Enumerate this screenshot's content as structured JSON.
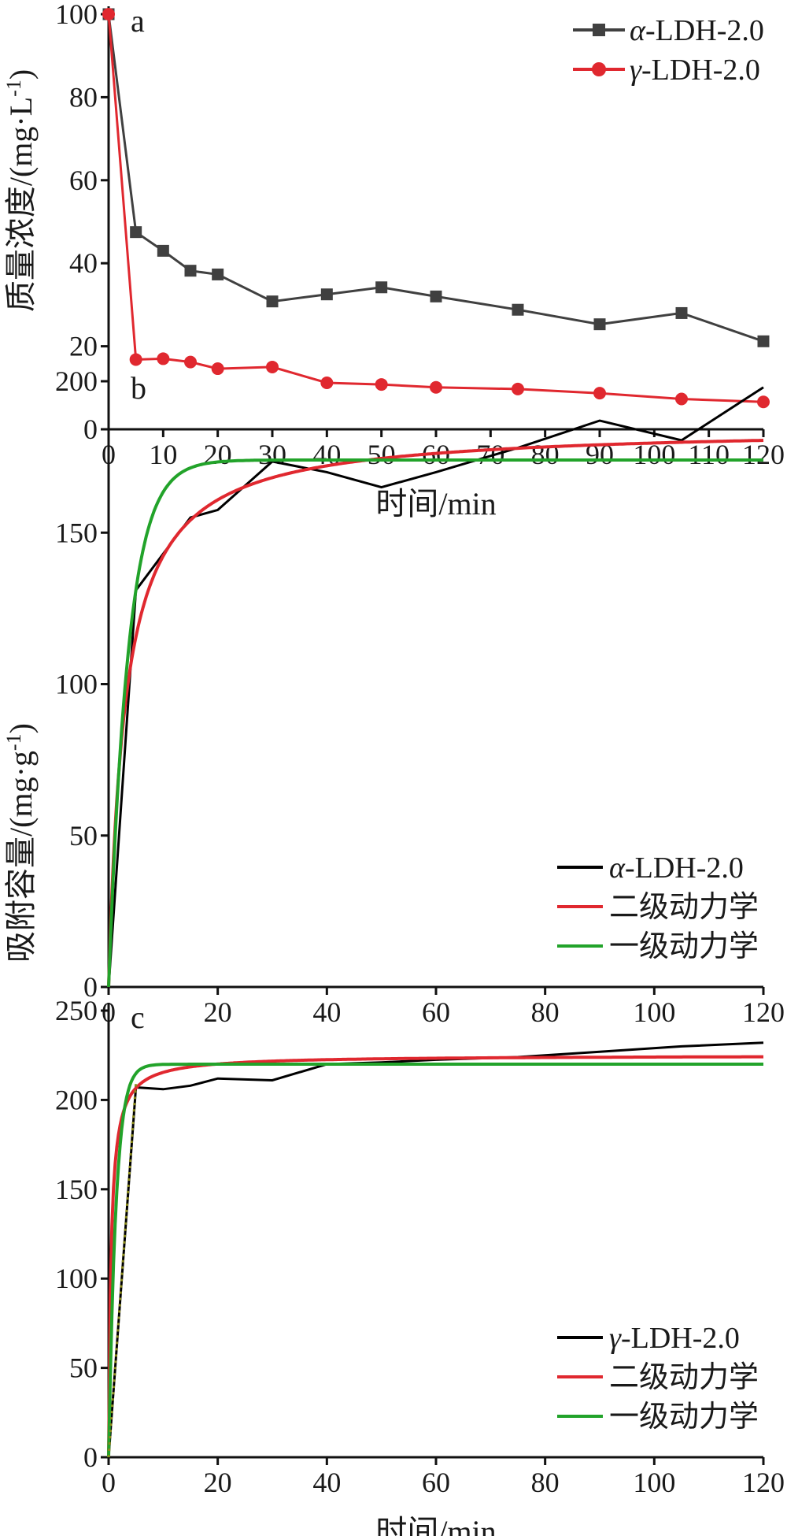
{
  "chart_data": [
    {
      "panel": "a",
      "type": "line",
      "xlabel": "时间/min",
      "ylabel": "质量浓度/(mg·L-1)",
      "ylabel_main": "质量浓度/(mg·L",
      "ylabel_sup": "-1",
      "ylabel_end": ")",
      "xlim": [
        0,
        120
      ],
      "ylim": [
        0,
        100
      ],
      "x_ticks": [
        0,
        10,
        20,
        30,
        40,
        50,
        60,
        70,
        80,
        90,
        100,
        110,
        120
      ],
      "y_ticks": [
        0,
        20,
        40,
        60,
        80,
        100
      ],
      "legend_position": "top-right",
      "series": [
        {
          "name": "α-LDH-2.0",
          "name_symbol": "α",
          "name_rest": "-LDH-2.0",
          "color": "#404040",
          "marker": "square",
          "x": [
            0,
            5,
            10,
            15,
            20,
            30,
            40,
            50,
            60,
            75,
            90,
            105,
            120
          ],
          "y": [
            100,
            47.5,
            43,
            38.2,
            37.3,
            30.8,
            32.5,
            34.2,
            32,
            28.8,
            25.3,
            28,
            21.2
          ]
        },
        {
          "name": "γ-LDH-2.0",
          "name_symbol": "γ",
          "name_rest": "-LDH-2.0",
          "color": "#e0282f",
          "marker": "circle",
          "x": [
            0,
            5,
            10,
            15,
            20,
            30,
            40,
            50,
            60,
            75,
            90,
            105,
            120
          ],
          "y": [
            100,
            16.8,
            17,
            16.2,
            14.6,
            15,
            11.2,
            10.8,
            10.1,
            9.7,
            8.7,
            7.3,
            6.6
          ]
        }
      ]
    },
    {
      "panel": "b",
      "type": "line",
      "xlabel": "",
      "ylabel": "吸附容量/(mg·g-1)",
      "ylabel_main": "吸附容量/(mg·g",
      "ylabel_sup": "-1",
      "ylabel_end": ")",
      "xlim": [
        0,
        120
      ],
      "ylim": [
        0,
        200
      ],
      "x_ticks": [
        0,
        20,
        40,
        60,
        80,
        100,
        120
      ],
      "y_ticks": [
        0,
        50,
        100,
        150,
        200
      ],
      "legend_position": "bottom-right",
      "series": [
        {
          "name": "α-LDH-2.0",
          "name_symbol": "α",
          "name_rest": "-LDH-2.0",
          "color": "#000000",
          "x": [
            0,
            5,
            10,
            15,
            20,
            30,
            40,
            50,
            60,
            75,
            90,
            105,
            120
          ],
          "y": [
            0,
            131,
            143,
            155,
            157.5,
            173.5,
            170,
            165,
            170,
            178,
            187,
            180.5,
            198
          ]
        },
        {
          "name": "二级动力学",
          "color": "#e0282f",
          "fit": "pso",
          "qe": 185,
          "k": 0.0018
        },
        {
          "name": "一级动力学",
          "color": "#22a32a",
          "fit": "pfo",
          "qe": 174,
          "k": 0.28
        }
      ]
    },
    {
      "panel": "c",
      "type": "line",
      "xlabel": "时间/min",
      "ylabel": "",
      "xlim": [
        0,
        120
      ],
      "ylim": [
        0,
        250
      ],
      "x_ticks": [
        0,
        20,
        40,
        60,
        80,
        100,
        120
      ],
      "y_ticks": [
        0,
        50,
        100,
        150,
        200,
        250
      ],
      "legend_position": "bottom-right",
      "series": [
        {
          "name": "γ-LDH-2.0",
          "name_symbol": "γ",
          "name_rest": "-LDH-2.0",
          "color": "#000000",
          "x": [
            0,
            5,
            10,
            15,
            20,
            30,
            40,
            50,
            60,
            75,
            90,
            105,
            120
          ],
          "y": [
            0,
            207,
            206,
            208,
            212,
            211,
            220,
            221,
            222.5,
            224,
            227,
            230,
            232
          ]
        },
        {
          "name": "二级动力学",
          "color": "#e0282f",
          "fit": "pso",
          "qe": 225,
          "k": 0.01
        },
        {
          "name": "一级动力学",
          "color": "#22a32a",
          "fit": "pfo",
          "qe": 220,
          "k": 0.75,
          "dotted_rise": true
        }
      ]
    }
  ]
}
